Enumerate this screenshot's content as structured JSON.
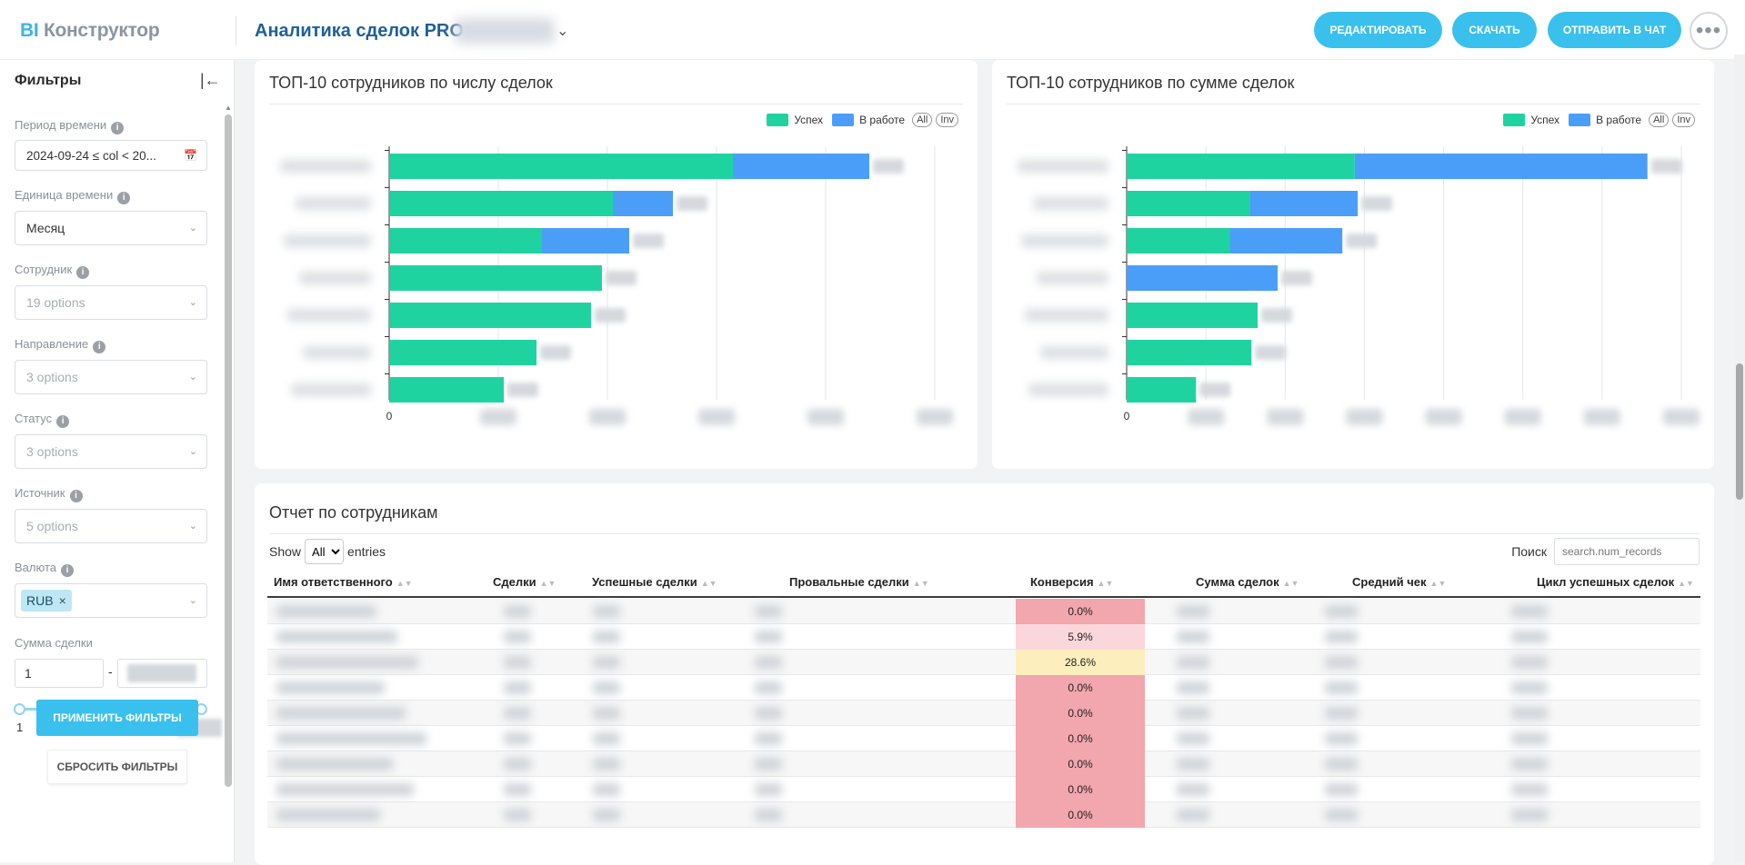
{
  "header": {
    "logo_prefix": "BI",
    "logo_text": "Конструктор",
    "dashboard_title": "Аналитика сделок PRO",
    "buttons": {
      "edit": "РЕДАКТИРОВАТЬ",
      "download": "СКАЧАТЬ",
      "send": "ОТПРАВИТЬ В ЧАТ"
    },
    "more_icon": "more-horizontal-icon"
  },
  "filters": {
    "title": "Фильтры",
    "period": {
      "label": "Период времени",
      "value": "2024-09-24 ≤ col < 20..."
    },
    "time_unit": {
      "label": "Единица времени",
      "value": "Месяц"
    },
    "employee": {
      "label": "Сотрудник",
      "value": "19 options"
    },
    "direction": {
      "label": "Направление",
      "value": "3 options"
    },
    "status": {
      "label": "Статус",
      "value": "3 options"
    },
    "source": {
      "label": "Источник",
      "value": "5 options"
    },
    "currency": {
      "label": "Валюта",
      "value": "RUB",
      "remove": "×"
    },
    "deal_sum": {
      "label": "Сумма сделки",
      "min_value": "1",
      "separator": "-",
      "slider_min_label": "1"
    },
    "apply_label": "ПРИМЕНИТЬ ФИЛЬТРЫ",
    "reset_label": "СБРОСИТЬ ФИЛЬТРЫ"
  },
  "colors": {
    "success": "#1fd3a1",
    "in_work": "#4a9ef8",
    "accent": "#3ac0ec",
    "conv_red": "#f2a6ad",
    "conv_pink": "#fbd7dc",
    "conv_yellow": "#fdeebe"
  },
  "charts": [
    {
      "title": "ТОП-10 сотрудников по числу сделок",
      "legend": {
        "success": "Успех",
        "in_work": "В работе",
        "all": "All",
        "inv": "Inv"
      },
      "chart_data": {
        "type": "bar",
        "orientation": "horizontal",
        "stacked": true,
        "categories": [
          "",
          "",
          "",
          "",
          "",
          "",
          ""
        ],
        "series": [
          {
            "name": "Успех",
            "values": [
              63,
              41,
              28,
              39,
              37,
              27,
              21
            ]
          },
          {
            "name": "В работе",
            "values": [
              25,
              11,
              16,
              0,
              0,
              0,
              0
            ]
          }
        ],
        "xlim": [
          0,
          100
        ],
        "tick_count": 5,
        "zero_label": "0"
      }
    },
    {
      "title": "ТОП-10 сотрудников по сумме сделок",
      "legend": {
        "success": "Успех",
        "in_work": "В работе",
        "all": "All",
        "inv": "Inv"
      },
      "chart_data": {
        "type": "bar",
        "orientation": "horizontal",
        "stacked": true,
        "categories": [
          "",
          "",
          "",
          "",
          "",
          "",
          ""
        ],
        "series": [
          {
            "name": "Успех",
            "values": [
              148,
              80,
              67,
              0,
              85,
              81,
              45
            ]
          },
          {
            "name": "В работе",
            "values": [
              190,
              70,
              73,
              98,
              0,
              0,
              0
            ]
          }
        ],
        "xlim": [
          0,
          360
        ],
        "tick_count": 7,
        "zero_label": "0"
      }
    }
  ],
  "report": {
    "title": "Отчет по сотрудникам",
    "show_label": "Show",
    "entries_label": "entries",
    "entries_value": "All",
    "search_label": "Поиск",
    "search_placeholder": "search.num_records",
    "columns": [
      "Имя ответственного",
      "Сделки",
      "Успешные сделки",
      "Провальные сделки",
      "Конверсия",
      "Сумма сделок",
      "Средний чек",
      "Цикл успешных сделок"
    ],
    "rows": [
      {
        "conversion": "0.0%",
        "level": "red"
      },
      {
        "conversion": "5.9%",
        "level": "pink"
      },
      {
        "conversion": "28.6%",
        "level": "yellow"
      },
      {
        "conversion": "0.0%",
        "level": "red"
      },
      {
        "conversion": "0.0%",
        "level": "red"
      },
      {
        "conversion": "0.0%",
        "level": "red"
      },
      {
        "conversion": "0.0%",
        "level": "red"
      },
      {
        "conversion": "0.0%",
        "level": "red"
      },
      {
        "conversion": "0.0%",
        "level": "red"
      }
    ]
  }
}
